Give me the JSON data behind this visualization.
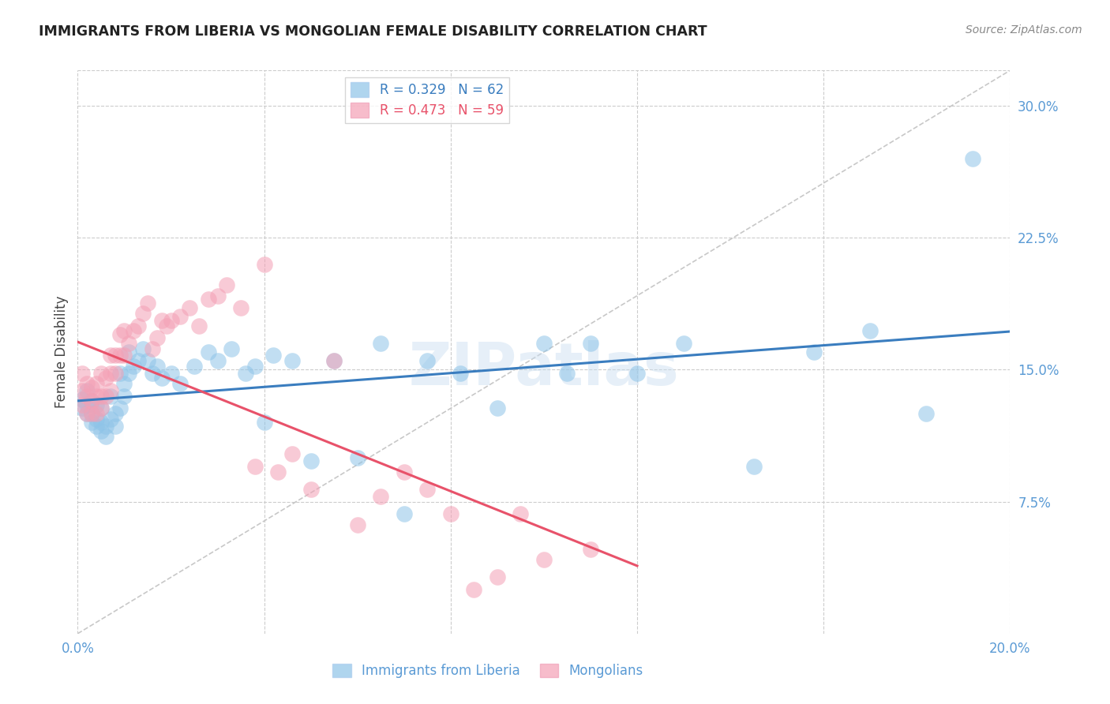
{
  "title": "IMMIGRANTS FROM LIBERIA VS MONGOLIAN FEMALE DISABILITY CORRELATION CHART",
  "source": "Source: ZipAtlas.com",
  "ylabel": "Female Disability",
  "watermark": "ZIPatlas",
  "xlim": [
    0.0,
    0.2
  ],
  "ylim": [
    0.0,
    0.32
  ],
  "xtick_positions": [
    0.0,
    0.04,
    0.08,
    0.12,
    0.16,
    0.2
  ],
  "xtick_labels": [
    "0.0%",
    "",
    "",
    "",
    "",
    "20.0%"
  ],
  "ytick_vals_right": [
    0.075,
    0.15,
    0.225,
    0.3
  ],
  "ytick_labels_right": [
    "7.5%",
    "15.0%",
    "22.5%",
    "30.0%"
  ],
  "blue_R": 0.329,
  "blue_N": 62,
  "pink_R": 0.473,
  "pink_N": 59,
  "blue_color": "#8ec4e8",
  "pink_color": "#f4a0b5",
  "blue_line_color": "#3a7dbf",
  "pink_line_color": "#e8526a",
  "diag_line_color": "#c8c8c8",
  "tick_label_color": "#5b9bd5",
  "legend_label_blue": "Immigrants from Liberia",
  "legend_label_pink": "Mongolians",
  "blue_x": [
    0.001,
    0.001,
    0.002,
    0.002,
    0.002,
    0.003,
    0.003,
    0.003,
    0.004,
    0.004,
    0.004,
    0.005,
    0.005,
    0.005,
    0.006,
    0.006,
    0.007,
    0.007,
    0.008,
    0.008,
    0.009,
    0.009,
    0.01,
    0.01,
    0.011,
    0.011,
    0.012,
    0.013,
    0.014,
    0.015,
    0.016,
    0.017,
    0.018,
    0.02,
    0.022,
    0.025,
    0.028,
    0.03,
    0.033,
    0.036,
    0.038,
    0.04,
    0.042,
    0.046,
    0.05,
    0.055,
    0.06,
    0.065,
    0.07,
    0.075,
    0.082,
    0.09,
    0.1,
    0.105,
    0.11,
    0.12,
    0.13,
    0.145,
    0.158,
    0.17,
    0.182,
    0.192
  ],
  "blue_y": [
    0.128,
    0.133,
    0.125,
    0.13,
    0.138,
    0.12,
    0.125,
    0.132,
    0.118,
    0.122,
    0.13,
    0.115,
    0.12,
    0.128,
    0.112,
    0.118,
    0.122,
    0.135,
    0.118,
    0.125,
    0.128,
    0.148,
    0.135,
    0.142,
    0.148,
    0.16,
    0.152,
    0.155,
    0.162,
    0.155,
    0.148,
    0.152,
    0.145,
    0.148,
    0.142,
    0.152,
    0.16,
    0.155,
    0.162,
    0.148,
    0.152,
    0.12,
    0.158,
    0.155,
    0.098,
    0.155,
    0.1,
    0.165,
    0.068,
    0.155,
    0.148,
    0.128,
    0.165,
    0.148,
    0.165,
    0.148,
    0.165,
    0.095,
    0.16,
    0.172,
    0.125,
    0.27
  ],
  "pink_x": [
    0.001,
    0.001,
    0.001,
    0.002,
    0.002,
    0.002,
    0.003,
    0.003,
    0.003,
    0.004,
    0.004,
    0.004,
    0.005,
    0.005,
    0.005,
    0.006,
    0.006,
    0.007,
    0.007,
    0.007,
    0.008,
    0.008,
    0.009,
    0.009,
    0.01,
    0.01,
    0.011,
    0.012,
    0.013,
    0.014,
    0.015,
    0.016,
    0.017,
    0.018,
    0.019,
    0.02,
    0.022,
    0.024,
    0.026,
    0.028,
    0.03,
    0.032,
    0.035,
    0.038,
    0.04,
    0.043,
    0.046,
    0.05,
    0.055,
    0.06,
    0.065,
    0.07,
    0.075,
    0.08,
    0.085,
    0.09,
    0.095,
    0.1,
    0.11
  ],
  "pink_y": [
    0.13,
    0.138,
    0.148,
    0.125,
    0.135,
    0.142,
    0.125,
    0.132,
    0.14,
    0.125,
    0.135,
    0.142,
    0.128,
    0.135,
    0.148,
    0.135,
    0.145,
    0.138,
    0.148,
    0.158,
    0.148,
    0.158,
    0.158,
    0.17,
    0.158,
    0.172,
    0.165,
    0.172,
    0.175,
    0.182,
    0.188,
    0.162,
    0.168,
    0.178,
    0.175,
    0.178,
    0.18,
    0.185,
    0.175,
    0.19,
    0.192,
    0.198,
    0.185,
    0.095,
    0.21,
    0.092,
    0.102,
    0.082,
    0.155,
    0.062,
    0.078,
    0.092,
    0.082,
    0.068,
    0.025,
    0.032,
    0.068,
    0.042,
    0.048
  ]
}
